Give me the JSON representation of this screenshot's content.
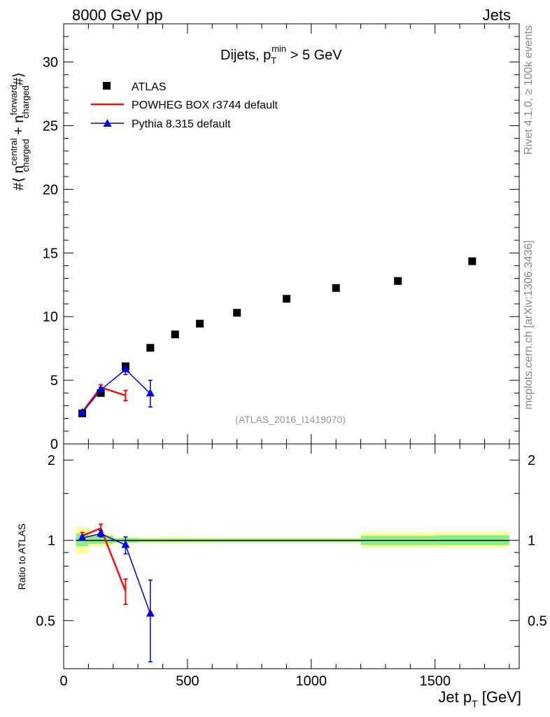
{
  "header": {
    "left": "8000 GeV pp",
    "right": "Jets"
  },
  "side_labels": {
    "rivet": "Rivet 4.1.0, ≥ 100k events",
    "mcplots": "mcplots.cern.ch [arXiv:1306.3436]"
  },
  "analysis_id": "(ATLAS_2016_I1419070)",
  "colors": {
    "atlas": "#000000",
    "powheg": "#ee1111",
    "pythia": "#0000dd",
    "band_inner": "#88ee88",
    "band_outer": "#ffff99"
  },
  "chart_data": [
    {
      "type": "scatter",
      "panel": "main",
      "title": {
        "prefix": "Dijets, p",
        "sub": "T",
        "sup": "min",
        "suffix": " > 5 GeV"
      },
      "ylabel": "#⟨ n^central_charged + n^forward_charged #⟩",
      "ylim": [
        0,
        33
      ],
      "xlim": [
        0,
        1840
      ],
      "yticks": [
        0,
        5,
        10,
        15,
        20,
        25,
        30
      ],
      "legend": {
        "placement": "top-left",
        "entries": [
          "ATLAS",
          "POWHEG BOX r3744 default",
          "Pythia 8.315 default"
        ]
      },
      "series": [
        {
          "name": "ATLAS",
          "style": "markers",
          "x": [
            75,
            150,
            250,
            350,
            450,
            550,
            700,
            900,
            1100,
            1350,
            1650
          ],
          "y": [
            2.4,
            4.0,
            6.1,
            7.55,
            8.6,
            9.45,
            10.3,
            11.4,
            12.25,
            12.8,
            14.35
          ]
        },
        {
          "name": "POWHEG BOX r3744 default",
          "style": "line",
          "x": [
            75,
            150,
            250
          ],
          "y": [
            2.5,
            4.45,
            3.8
          ],
          "err": [
            0.1,
            0.2,
            0.4
          ]
        },
        {
          "name": "Pythia 8.315 default",
          "style": "line-triangles",
          "x": [
            75,
            150,
            250,
            350
          ],
          "y": [
            2.45,
            4.25,
            5.85,
            3.95
          ],
          "err": [
            0.1,
            0.2,
            0.4,
            1.05
          ]
        }
      ]
    },
    {
      "type": "line",
      "panel": "ratio",
      "ylabel": "Ratio to ATLAS",
      "xlabel": "Jet p_T [GeV]",
      "xlim": [
        0,
        1840
      ],
      "ylim": [
        0.33,
        2.3
      ],
      "yticks": [
        0.5,
        1,
        2
      ],
      "ytick_labels": [
        "0.5",
        "1",
        "2"
      ],
      "xticks": [
        0,
        500,
        1000,
        1500
      ],
      "xtick_labels": [
        "0",
        "500",
        "1000",
        "1500"
      ],
      "bands": [
        {
          "xlo": 50,
          "xhi": 100,
          "inner": [
            0.95,
            1.06
          ],
          "outer": [
            0.89,
            1.12
          ]
        },
        {
          "xlo": 100,
          "xhi": 200,
          "inner": [
            0.97,
            1.04
          ],
          "outer": [
            0.95,
            1.06
          ]
        },
        {
          "xlo": 200,
          "xhi": 300,
          "inner": [
            0.98,
            1.02
          ],
          "outer": [
            0.975,
            1.025
          ]
        },
        {
          "xlo": 300,
          "xhi": 400,
          "inner": [
            0.985,
            1.015
          ],
          "outer": [
            0.975,
            1.025
          ]
        },
        {
          "xlo": 400,
          "xhi": 500,
          "inner": [
            0.985,
            1.015
          ],
          "outer": [
            0.975,
            1.03
          ]
        },
        {
          "xlo": 500,
          "xhi": 600,
          "inner": [
            0.985,
            1.015
          ],
          "outer": [
            0.975,
            1.025
          ]
        },
        {
          "xlo": 600,
          "xhi": 800,
          "inner": [
            0.985,
            1.015
          ],
          "outer": [
            0.978,
            1.022
          ]
        },
        {
          "xlo": 800,
          "xhi": 1000,
          "inner": [
            0.985,
            1.015
          ],
          "outer": [
            0.978,
            1.022
          ]
        },
        {
          "xlo": 1000,
          "xhi": 1200,
          "inner": [
            0.985,
            1.015
          ],
          "outer": [
            0.978,
            1.022
          ]
        },
        {
          "xlo": 1200,
          "xhi": 1500,
          "inner": [
            0.96,
            1.04
          ],
          "outer": [
            0.94,
            1.07
          ]
        },
        {
          "xlo": 1500,
          "xhi": 1800,
          "inner": [
            0.96,
            1.045
          ],
          "outer": [
            0.935,
            1.075
          ]
        }
      ],
      "series": [
        {
          "name": "POWHEG BOX r3744 default",
          "x": [
            75,
            150,
            250
          ],
          "y": [
            1.04,
            1.11,
            0.645
          ],
          "err": [
            0.03,
            0.04,
            0.07
          ]
        },
        {
          "name": "Pythia 8.315 default",
          "x": [
            75,
            150,
            250,
            350
          ],
          "y": [
            1.02,
            1.06,
            0.96,
            0.53
          ],
          "err": [
            0.02,
            0.03,
            0.07,
            0.18
          ]
        }
      ]
    }
  ]
}
